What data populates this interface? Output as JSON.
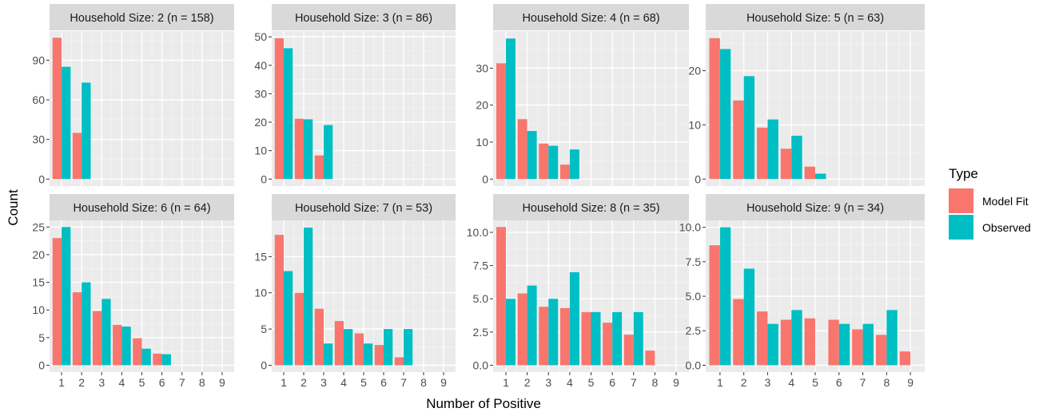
{
  "chart_data": {
    "type": "bar",
    "xlabel": "Number of Positive",
    "ylabel": "Count",
    "legend": {
      "title": "Type",
      "placement": "right",
      "entries": [
        {
          "name": "Model Fit",
          "color": "#F8766D"
        },
        {
          "name": "Observed",
          "color": "#00BFC4"
        }
      ]
    },
    "categories": [
      "1",
      "2",
      "3",
      "4",
      "5",
      "6",
      "7",
      "8",
      "9"
    ],
    "panels": [
      {
        "title": "Household Size: 2 (n = 158)",
        "ylim": [
          0,
          112
        ],
        "yticks": [
          0,
          30,
          60,
          90
        ],
        "ytick_labels": [
          "0",
          "30",
          "60",
          "90"
        ],
        "series": [
          {
            "name": "Model Fit",
            "values": [
              107,
              35,
              null,
              null,
              null,
              null,
              null,
              null,
              null
            ]
          },
          {
            "name": "Observed",
            "values": [
              85,
              73,
              null,
              null,
              null,
              null,
              null,
              null,
              null
            ]
          }
        ]
      },
      {
        "title": "Household Size: 3 (n = 86)",
        "ylim": [
          0,
          52
        ],
        "yticks": [
          0,
          10,
          20,
          30,
          40,
          50
        ],
        "ytick_labels": [
          "0",
          "10",
          "20",
          "30",
          "40",
          "50"
        ],
        "series": [
          {
            "name": "Model Fit",
            "values": [
              49.5,
              21.2,
              8.3,
              null,
              null,
              null,
              null,
              null,
              null
            ]
          },
          {
            "name": "Observed",
            "values": [
              46,
              21,
              19,
              null,
              null,
              null,
              null,
              null,
              null
            ]
          }
        ]
      },
      {
        "title": "Household Size: 4 (n = 68)",
        "ylim": [
          0,
          40
        ],
        "yticks": [
          0,
          10,
          20,
          30
        ],
        "ytick_labels": [
          "0",
          "10",
          "20",
          "30"
        ],
        "series": [
          {
            "name": "Model Fit",
            "values": [
              31.3,
              16.2,
              9.6,
              3.9,
              null,
              null,
              null,
              null,
              null
            ]
          },
          {
            "name": "Observed",
            "values": [
              38,
              13,
              9,
              8,
              null,
              null,
              null,
              null,
              null
            ]
          }
        ]
      },
      {
        "title": "Household Size: 5 (n = 63)",
        "ylim": [
          0,
          27.3
        ],
        "yticks": [
          0,
          10,
          20
        ],
        "ytick_labels": [
          "0",
          "10",
          "20"
        ],
        "series": [
          {
            "name": "Model Fit",
            "values": [
              26,
              14.5,
              9.5,
              5.6,
              2.3,
              null,
              null,
              null,
              null
            ]
          },
          {
            "name": "Observed",
            "values": [
              24,
              19,
              11,
              8,
              1,
              null,
              null,
              null,
              null
            ]
          }
        ]
      },
      {
        "title": "Household Size: 6 (n = 64)",
        "ylim": [
          0,
          26.2
        ],
        "yticks": [
          0,
          5,
          10,
          15,
          20,
          25
        ],
        "ytick_labels": [
          "0",
          "5",
          "10",
          "15",
          "20",
          "25"
        ],
        "series": [
          {
            "name": "Model Fit",
            "values": [
              23,
              13.2,
              9.8,
              7.3,
              4.9,
              2.1,
              null,
              null,
              null
            ]
          },
          {
            "name": "Observed",
            "values": [
              25,
              15,
              12,
              7,
              3,
              2,
              null,
              null,
              null
            ]
          }
        ]
      },
      {
        "title": "Household Size: 7 (n = 53)",
        "ylim": [
          0,
          20
        ],
        "yticks": [
          0,
          5,
          10,
          15
        ],
        "ytick_labels": [
          "0",
          "5",
          "10",
          "15"
        ],
        "series": [
          {
            "name": "Model Fit",
            "values": [
              18,
              10,
              7.8,
              6.1,
              4.4,
              2.8,
              1.1,
              null,
              null
            ]
          },
          {
            "name": "Observed",
            "values": [
              13,
              19,
              3,
              5,
              3,
              5,
              5,
              null,
              null
            ]
          }
        ]
      },
      {
        "title": "Household Size: 8 (n = 35)",
        "ylim": [
          0,
          10.9
        ],
        "yticks": [
          0,
          2.5,
          5,
          7.5,
          10
        ],
        "ytick_labels": [
          "0.0",
          "2.5",
          "5.0",
          "7.5",
          "10.0"
        ],
        "series": [
          {
            "name": "Model Fit",
            "values": [
              10.4,
              5.4,
              4.4,
              4.3,
              4,
              3.2,
              2.3,
              1.1,
              null
            ]
          },
          {
            "name": "Observed",
            "values": [
              5,
              6,
              5,
              7,
              4,
              4,
              4,
              null,
              null
            ]
          }
        ]
      },
      {
        "title": "Household Size: 9 (n = 34)",
        "ylim": [
          0,
          10.5
        ],
        "yticks": [
          0,
          2.5,
          5,
          7.5,
          10
        ],
        "ytick_labels": [
          "0.0",
          "2.5",
          "5.0",
          "7.5",
          "10.0"
        ],
        "series": [
          {
            "name": "Model Fit",
            "values": [
              8.7,
              4.8,
              3.9,
              3.3,
              3.4,
              3.3,
              2.6,
              2.2,
              1
            ]
          },
          {
            "name": "Observed",
            "values": [
              10,
              7,
              3,
              4,
              null,
              3,
              3,
              4,
              null
            ]
          }
        ]
      }
    ]
  }
}
